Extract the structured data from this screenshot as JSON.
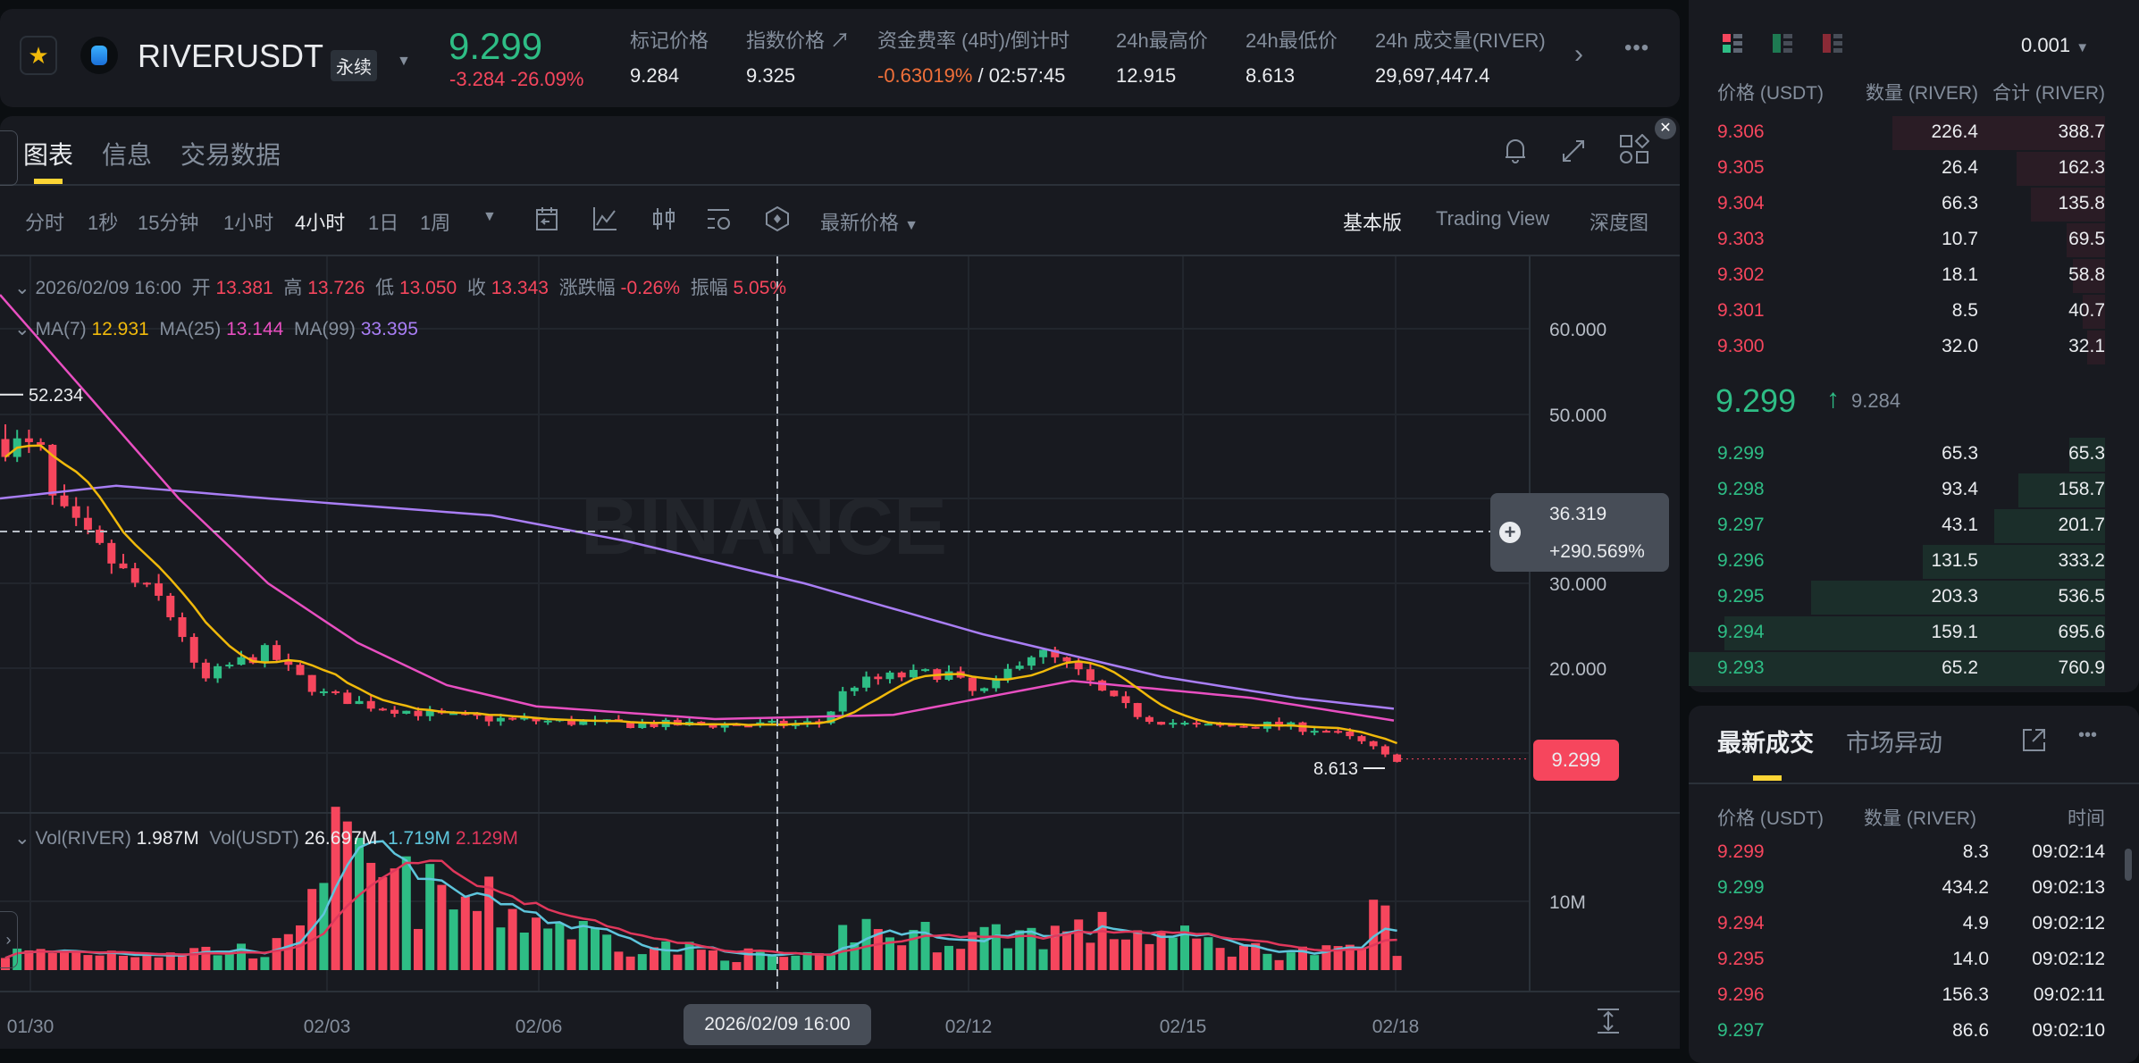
{
  "header": {
    "symbol": "RIVERUSDT",
    "contract_type": "永续",
    "last_price": "9.299",
    "change": "-3.284",
    "change_pct": "-26.09%",
    "stats": [
      {
        "label": "标记价格",
        "value": "9.284"
      },
      {
        "label": "指数价格 ↗",
        "value": "9.325"
      },
      {
        "label": "资金费率 (4时)/倒计时",
        "value": "-0.63019%",
        "value2": "/ 02:57:45"
      },
      {
        "label": "24h最高价",
        "value": "12.915"
      },
      {
        "label": "24h最低价",
        "value": "8.613"
      },
      {
        "label": "24h 成交量(RIVER)",
        "value": "29,697,447.4"
      }
    ]
  },
  "chart_tabs": [
    "图表",
    "信息",
    "交易数据"
  ],
  "intervals": [
    "分时",
    "1秒",
    "15分钟",
    "1小时",
    "4小时",
    "1日",
    "1周"
  ],
  "active_interval": "4小时",
  "price_type": "最新价格",
  "views": [
    "基本版",
    "Trading View",
    "深度图"
  ],
  "legend": {
    "date": "2026/02/09 16:00",
    "open_l": "开",
    "open": "13.381",
    "high_l": "高",
    "high": "13.726",
    "low_l": "低",
    "low": "13.050",
    "close_l": "收",
    "close": "13.343",
    "chg_l": "涨跌幅",
    "chg": "-0.26%",
    "amp_l": "振幅",
    "amp": "5.05%"
  },
  "ma": {
    "ma7_l": "MA(7)",
    "ma7": "12.931",
    "ma25_l": "MA(25)",
    "ma25": "13.144",
    "ma99_l": "MA(99)",
    "ma99": "33.395"
  },
  "price_axis": [
    "60.000",
    "50.000",
    "30.000",
    "20.000"
  ],
  "crosshair": {
    "price": "36.319",
    "pct": "+290.569%",
    "time": "2026/02/09 16:00"
  },
  "max_label": "52.234",
  "min_label": "8.613",
  "current_tag": "9.299",
  "watermark": "BINANCE",
  "volume": {
    "l1": "Vol(RIVER)",
    "v1": "1.987M",
    "l2": "Vol(USDT)",
    "v2": "26.697M",
    "v3": "1.719M",
    "v4": "2.129M",
    "axis": "10M"
  },
  "dates": [
    "01/30",
    "02/03",
    "02/06",
    "02/12",
    "02/15",
    "02/18"
  ],
  "orderbook": {
    "tick": "0.001",
    "headers": [
      "价格 (USDT)",
      "数量 (RIVER)",
      "合计 (RIVER)"
    ],
    "asks": [
      [
        "9.306",
        "226.4",
        "388.7"
      ],
      [
        "9.305",
        "26.4",
        "162.3"
      ],
      [
        "9.304",
        "66.3",
        "135.8"
      ],
      [
        "9.303",
        "10.7",
        "69.5"
      ],
      [
        "9.302",
        "18.1",
        "58.8"
      ],
      [
        "9.301",
        "8.5",
        "40.7"
      ],
      [
        "9.300",
        "32.0",
        "32.1"
      ]
    ],
    "mid": "9.299",
    "mid_arrow": "↑",
    "mark": "9.284",
    "bids": [
      [
        "9.299",
        "65.3",
        "65.3"
      ],
      [
        "9.298",
        "93.4",
        "158.7"
      ],
      [
        "9.297",
        "43.1",
        "201.7"
      ],
      [
        "9.296",
        "131.5",
        "333.2"
      ],
      [
        "9.295",
        "203.3",
        "536.5"
      ],
      [
        "9.294",
        "159.1",
        "695.6"
      ],
      [
        "9.293",
        "65.2",
        "760.9"
      ]
    ]
  },
  "trades": {
    "tabs": [
      "最新成交",
      "市场异动"
    ],
    "headers": [
      "价格 (USDT)",
      "数量 (RIVER)",
      "时间"
    ],
    "rows": [
      [
        "9.299",
        "8.3",
        "09:02:14",
        "sell"
      ],
      [
        "9.299",
        "434.2",
        "09:02:13",
        "buy"
      ],
      [
        "9.294",
        "4.9",
        "09:02:12",
        "sell"
      ],
      [
        "9.295",
        "14.0",
        "09:02:12",
        "sell"
      ],
      [
        "9.296",
        "156.3",
        "09:02:11",
        "sell"
      ],
      [
        "9.297",
        "86.6",
        "09:02:10",
        "buy"
      ]
    ]
  },
  "colors": {
    "up": "#2ebd85",
    "down": "#f6465d",
    "accent": "#fcd535",
    "ma7": "#f0b90b",
    "ma25": "#e84fc1",
    "ma99": "#a97ef5",
    "vma5": "#5ec5dc",
    "vma10": "#e0375b"
  }
}
